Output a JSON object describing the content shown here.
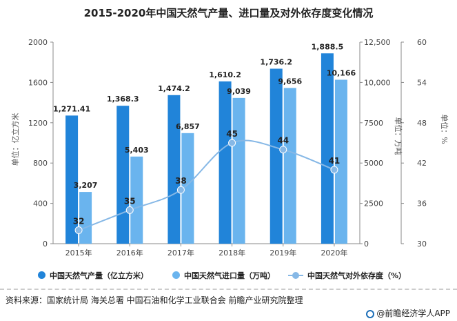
{
  "title": "2015-2020年中国天然气产量、进口量及对外依存度变化情况",
  "colors": {
    "production": "#2184d9",
    "imports": "#6ab4ee",
    "dependence": "#86b8e6",
    "axis": "#888888"
  },
  "chart_data": {
    "type": "bar",
    "categories": [
      "2015年",
      "2016年",
      "2017年",
      "2018年",
      "2019年",
      "2020年"
    ],
    "series": [
      {
        "name": "中国天然气产量（亿立方米）",
        "type": "bar",
        "axis": "left",
        "values": [
          1271.41,
          1368.3,
          1474.2,
          1610.2,
          1736.2,
          1888.5
        ],
        "labels": [
          "1,271.41",
          "1,368.3",
          "1,474.2",
          "1,610.2",
          "1,736.2",
          "1,888.5"
        ]
      },
      {
        "name": "中国天然气进口量（万吨）",
        "type": "bar",
        "axis": "right",
        "values": [
          3207,
          5403,
          6857,
          9039,
          9656,
          10166
        ],
        "labels": [
          "3,207",
          "5,403",
          "6,857",
          "9,039",
          "9,656",
          "10,166"
        ]
      },
      {
        "name": "中国天然气对外依存度（%）",
        "type": "line",
        "axis": "far-right",
        "values": [
          32,
          35,
          38,
          45,
          44,
          41
        ],
        "labels": [
          "32",
          "35",
          "38",
          "45",
          "44",
          "41"
        ]
      }
    ],
    "axes": {
      "left": {
        "label": "单位：亿立方米",
        "ylim": [
          0,
          2000
        ],
        "ticks": [
          "0",
          "400",
          "800",
          "1200",
          "1600",
          "2000"
        ]
      },
      "right": {
        "label": "单位：万吨",
        "ylim": [
          0,
          12500
        ],
        "ticks": [
          "0",
          "2500",
          "5000",
          "7500",
          "10,000",
          "12,500"
        ]
      },
      "far_right": {
        "label": "单位：%",
        "ylim": [
          30,
          60
        ],
        "ticks": [
          "30",
          "36",
          "42",
          "48",
          "54",
          "60"
        ]
      }
    },
    "grid": false,
    "legend_position": "bottom"
  },
  "source": "资料来源：国家统计局 海关总署 中国石油和化学工业联合会 前瞻产业研究院整理",
  "brand": "@前瞻经济学人APP"
}
